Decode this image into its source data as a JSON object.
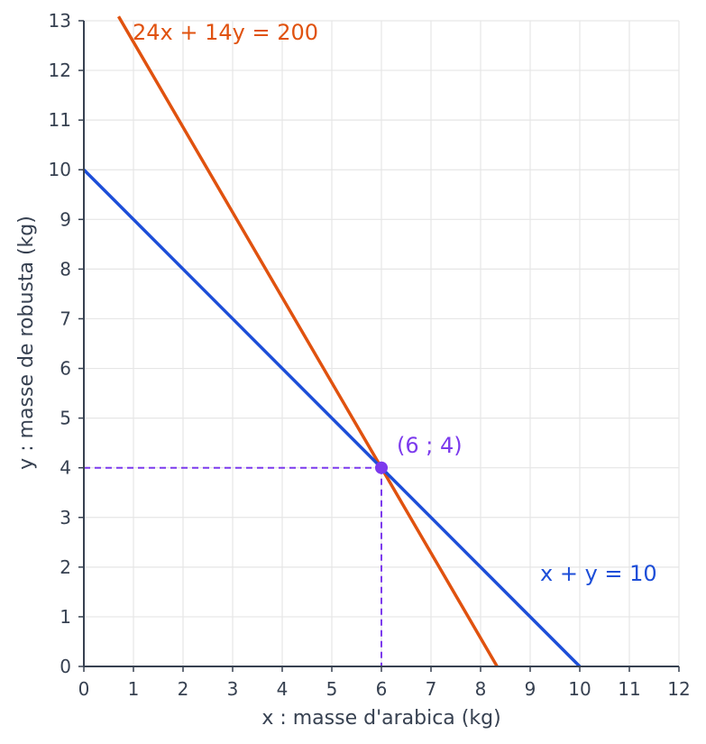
{
  "chart_data": {
    "type": "line",
    "xlabel": "x : masse d'arabica (kg)",
    "ylabel": "y : masse de robusta (kg)",
    "xlim": [
      0,
      12
    ],
    "ylim": [
      0,
      13
    ],
    "xticks": [
      "0",
      "1",
      "2",
      "3",
      "4",
      "5",
      "6",
      "7",
      "8",
      "9",
      "10",
      "11",
      "12"
    ],
    "yticks": [
      "0",
      "1",
      "2",
      "3",
      "4",
      "5",
      "6",
      "7",
      "8",
      "9",
      "10",
      "11",
      "12",
      "13"
    ],
    "grid": true,
    "series": [
      {
        "name": "24x + 14y = 200",
        "color": "#e0520f",
        "points": [
          [
            0.7,
            13.086
          ],
          [
            8.333,
            0
          ]
        ],
        "label_position": "top-left"
      },
      {
        "name": "x + y = 10",
        "color": "#1d4ed8",
        "points": [
          [
            0,
            10
          ],
          [
            10,
            0
          ]
        ],
        "label_position": "right"
      }
    ],
    "intersection": {
      "label": "(6 ; 4)",
      "x": 6,
      "y": 4,
      "color": "#7c3aed"
    }
  },
  "labels": {
    "orange_equation": "24x + 14y = 200",
    "blue_equation": "x + y = 10"
  }
}
